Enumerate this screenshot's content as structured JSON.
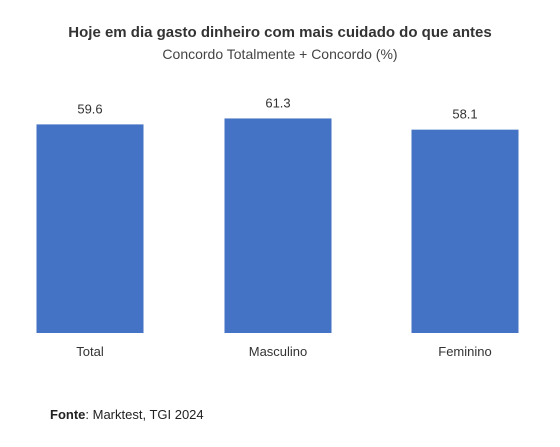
{
  "chart_data": {
    "type": "bar",
    "title": "Hoje em dia gasto dinheiro com mais cuidado do que antes",
    "subtitle": "Concordo Totalmente + Concordo (%)",
    "categories": [
      "Total",
      "Masculino",
      "Feminino"
    ],
    "values": [
      59.6,
      61.3,
      58.1
    ],
    "value_labels": [
      "59.6",
      "61.3",
      "58.1"
    ],
    "ylim": [
      0,
      70
    ],
    "grid": false,
    "bar_color": "#4472C4"
  },
  "source": {
    "label": "Fonte",
    "text": ": Marktest, TGI 2024"
  }
}
